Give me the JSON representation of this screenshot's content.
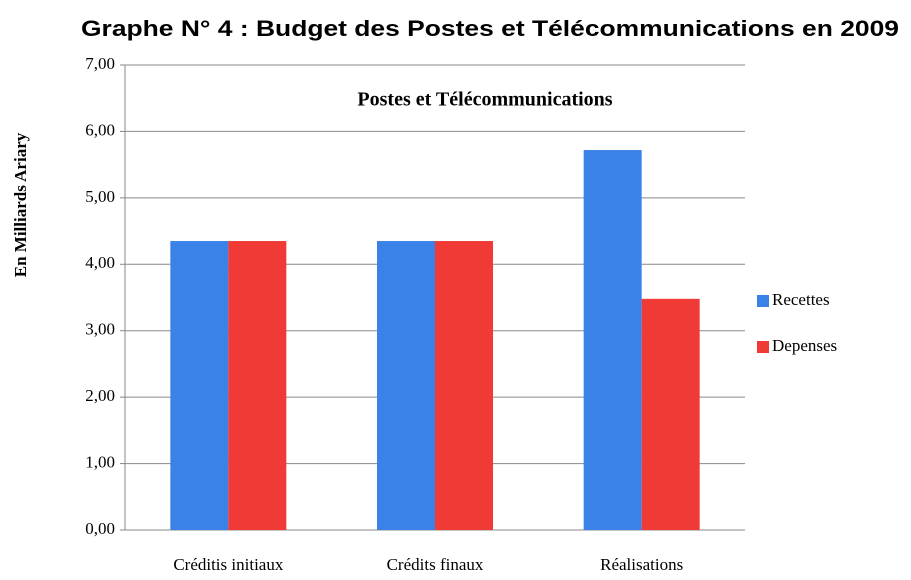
{
  "chart_data": {
    "type": "bar",
    "title": "Graphe N° 4  : Budget des Postes et Télécommunications en 2009",
    "subtitle": "Postes et Télécommunications",
    "y_label": "En Milliards Ariary",
    "categories": [
      "Créditis initiaux",
      "Crédits finaux",
      "Réalisations"
    ],
    "series": [
      {
        "name": "Recettes",
        "color": "#3b82e8",
        "values": [
          4.35,
          4.35,
          5.72
        ]
      },
      {
        "name": "Depenses",
        "color": "#f03a35",
        "values": [
          4.35,
          4.35,
          3.48
        ]
      }
    ],
    "ylim": [
      0,
      7
    ],
    "yticks": [
      {
        "value": 0,
        "label": "0,00"
      },
      {
        "value": 1,
        "label": "1,00"
      },
      {
        "value": 2,
        "label": "2,00"
      },
      {
        "value": 3,
        "label": "3,00"
      },
      {
        "value": 4,
        "label": "4,00"
      },
      {
        "value": 5,
        "label": "5,00"
      },
      {
        "value": 6,
        "label": "6,00"
      },
      {
        "value": 7,
        "label": "7,00"
      }
    ],
    "grid": true,
    "legend": "right"
  }
}
